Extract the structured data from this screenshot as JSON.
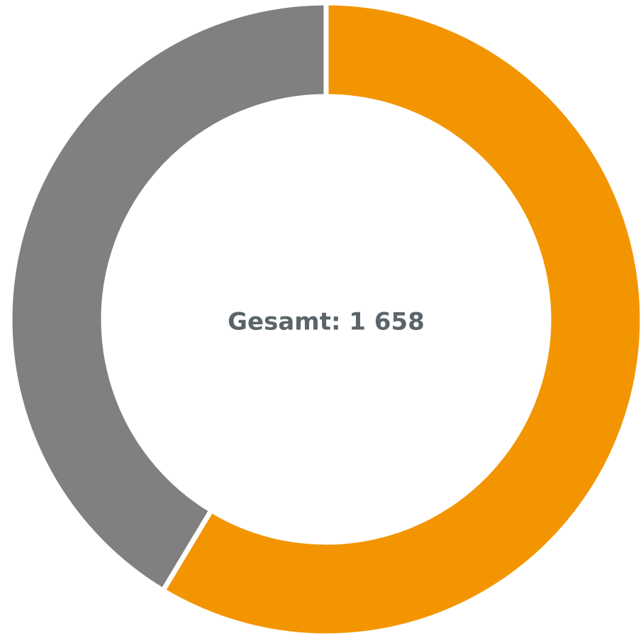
{
  "chart_data": {
    "type": "pie",
    "center_label": "Gesamt: 1 658",
    "values": [
      972,
      686
    ],
    "colors": [
      "#f39500",
      "#808080"
    ]
  }
}
